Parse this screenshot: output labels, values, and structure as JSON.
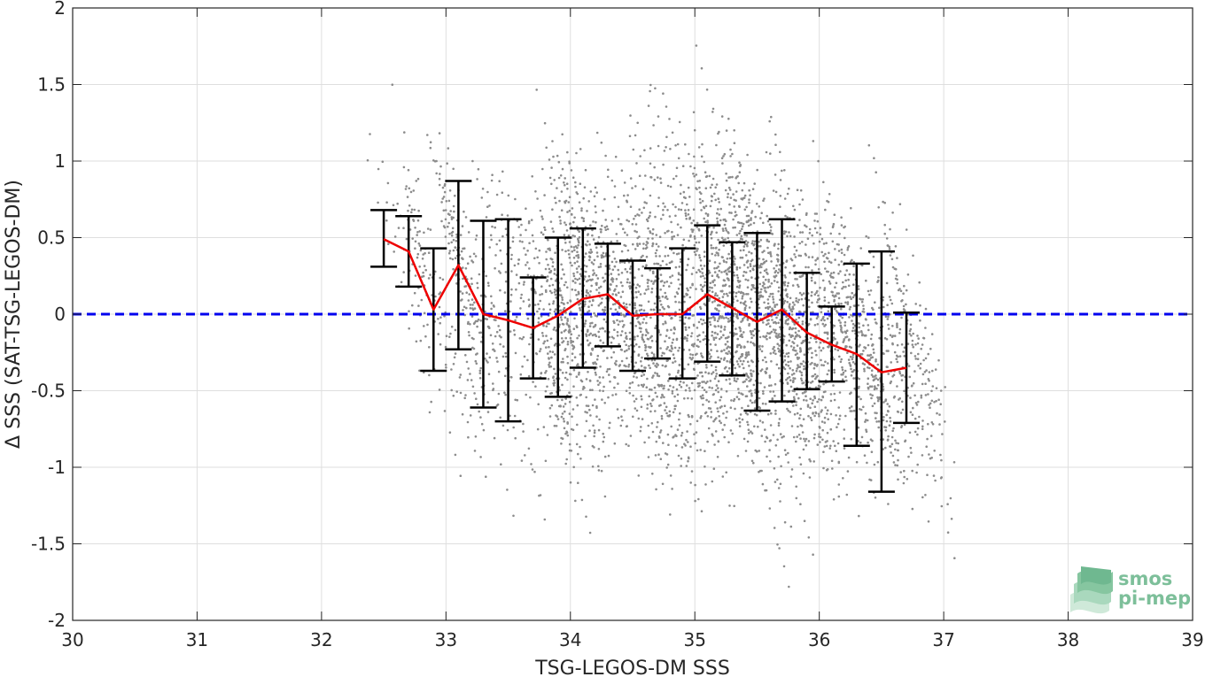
{
  "chart_data": {
    "type": "scatter",
    "title": "",
    "xlabel": "TSG-LEGOS-DM SSS",
    "ylabel": "Δ SSS (SAT-TSG-LEGOS-DM)",
    "xlim": [
      30,
      39
    ],
    "ylim": [
      -2,
      2
    ],
    "xticks": [
      30,
      31,
      32,
      33,
      34,
      35,
      36,
      37,
      38,
      39
    ],
    "yticks": [
      -2,
      -1.5,
      -1,
      -0.5,
      0,
      0.5,
      1,
      1.5,
      2
    ],
    "xtick_labels": [
      "30",
      "31",
      "32",
      "33",
      "34",
      "35",
      "36",
      "37",
      "38",
      "39"
    ],
    "ytick_labels": [
      "-2",
      "-1.5",
      "-1",
      "-0.5",
      "0",
      "0.5",
      "1",
      "1.5",
      "2"
    ],
    "grid": true,
    "zero_line": {
      "y": 0,
      "style": "dashed",
      "color": "#0000ee"
    },
    "scatter_color": "#8c8c8c",
    "scatter_description": "dense cloud of grey points forming diagonal streaks between x=32.6 and x=36.9",
    "binned_stats": {
      "x": [
        32.5,
        32.7,
        32.9,
        33.1,
        33.3,
        33.5,
        33.7,
        33.9,
        34.1,
        34.3,
        34.5,
        34.7,
        34.9,
        35.1,
        35.3,
        35.5,
        35.7,
        35.9,
        36.1,
        36.3,
        36.5,
        36.7
      ],
      "mean": [
        0.49,
        0.41,
        0.03,
        0.32,
        0.0,
        -0.04,
        -0.09,
        -0.01,
        0.1,
        0.13,
        -0.01,
        0.0,
        0.0,
        0.13,
        0.04,
        -0.05,
        0.03,
        -0.12,
        -0.2,
        -0.26,
        -0.38,
        -0.35
      ],
      "lower": [
        0.31,
        0.18,
        -0.37,
        -0.23,
        -0.61,
        -0.7,
        -0.42,
        -0.54,
        -0.35,
        -0.21,
        -0.37,
        -0.29,
        -0.42,
        -0.31,
        -0.4,
        -0.63,
        -0.57,
        -0.49,
        -0.44,
        -0.86,
        -1.16,
        -0.71
      ],
      "upper": [
        0.68,
        0.64,
        0.43,
        0.87,
        0.61,
        0.62,
        0.24,
        0.5,
        0.56,
        0.46,
        0.35,
        0.3,
        0.43,
        0.58,
        0.47,
        0.53,
        0.62,
        0.27,
        0.05,
        0.33,
        0.41,
        0.01
      ],
      "mean_color": "#ee0000",
      "errorbar_color": "#000000"
    }
  },
  "logo": {
    "line1": "smos",
    "line2": "pi-mep",
    "color": "#7dbf9a"
  }
}
